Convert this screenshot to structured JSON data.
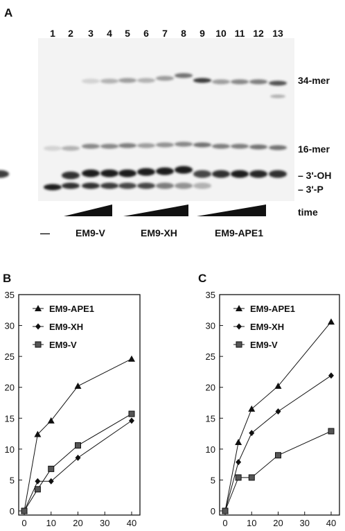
{
  "panel_a": {
    "label": "A",
    "lanes": [
      "1",
      "2",
      "3",
      "4",
      "5",
      "6",
      "7",
      "8",
      "9",
      "10",
      "11",
      "12",
      "13"
    ],
    "bands": {
      "top": "34-mer",
      "mid": "16-mer",
      "oh": "– 3'-OH",
      "p": "– 3'-P"
    },
    "time_label": "time",
    "groups": [
      "—",
      "EM9-V",
      "EM9-XH",
      "EM9-APE1"
    ]
  },
  "chart_data": [
    {
      "type": "line",
      "panel": "B",
      "x": [
        0,
        5,
        10,
        20,
        40
      ],
      "xticks": [
        "0",
        "10",
        "20",
        "30",
        "40"
      ],
      "yticks": [
        "0",
        "5",
        "10",
        "15",
        "20",
        "25",
        "30",
        "35"
      ],
      "xlim": [
        0,
        40
      ],
      "ylim": [
        0,
        35
      ],
      "legend_position": "top-left",
      "series": [
        {
          "name": "EM9-APE1",
          "marker": "triangle",
          "values": [
            0,
            12.4,
            14.6,
            20.2,
            24.6
          ]
        },
        {
          "name": "EM9-XH",
          "marker": "diamond",
          "values": [
            0,
            4.8,
            4.8,
            8.6,
            14.6
          ]
        },
        {
          "name": "EM9-V",
          "marker": "square",
          "values": [
            0,
            3.5,
            6.8,
            10.6,
            15.7
          ]
        }
      ]
    },
    {
      "type": "line",
      "panel": "C",
      "x": [
        0,
        5,
        10,
        20,
        40
      ],
      "xticks": [
        "0",
        "10",
        "20",
        "30",
        "40"
      ],
      "yticks": [
        "0",
        "5",
        "10",
        "15",
        "20",
        "25",
        "30",
        "35"
      ],
      "xlim": [
        0,
        40
      ],
      "ylim": [
        0,
        35
      ],
      "legend_position": "top-left",
      "series": [
        {
          "name": "EM9-APE1",
          "marker": "triangle",
          "values": [
            0,
            11.1,
            16.5,
            20.2,
            30.6
          ]
        },
        {
          "name": "EM9-XH",
          "marker": "diamond",
          "values": [
            0,
            7.9,
            12.6,
            16.1,
            21.9
          ]
        },
        {
          "name": "EM9-V",
          "marker": "square",
          "values": [
            0,
            5.4,
            5.4,
            9.0,
            12.9
          ]
        }
      ]
    }
  ]
}
